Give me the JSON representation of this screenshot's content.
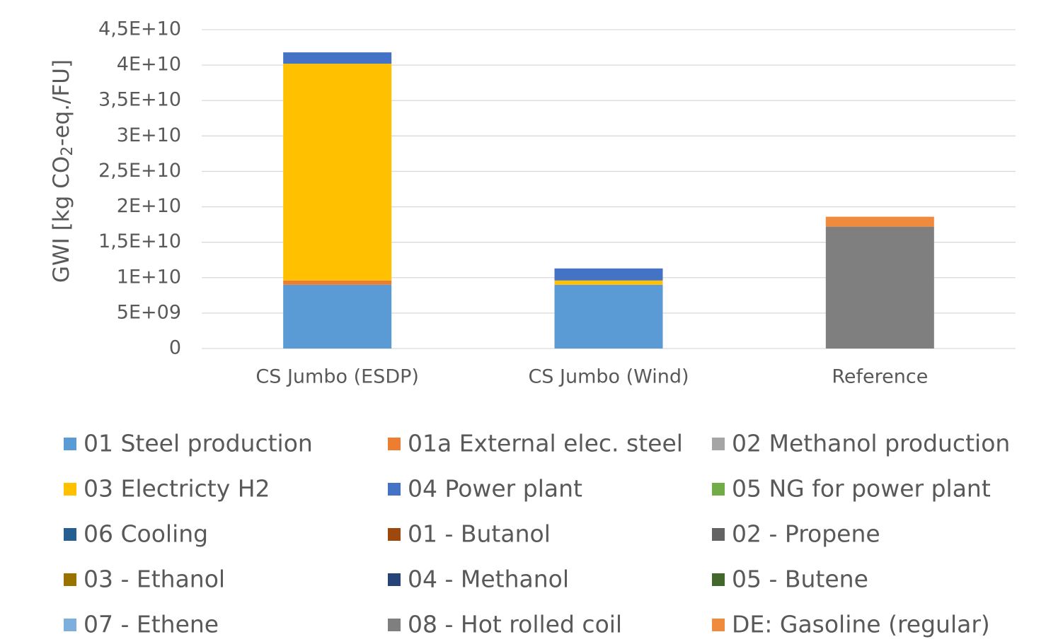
{
  "chart_data": {
    "type": "bar",
    "stacked": true,
    "y_label": [
      "GWI [kg CO",
      "2",
      "-eq./FU]"
    ],
    "categories": [
      "CS Jumbo (ESDP)",
      "CS Jumbo (Wind)",
      "Reference"
    ],
    "ylim": [
      0,
      45000000000
    ],
    "yticks": [
      0,
      {
        "value": 5000000000,
        "label": "5E+09"
      },
      {
        "value": 10000000000,
        "label": "1E+10"
      },
      {
        "value": 15000000000,
        "label": "1,5E+10"
      },
      {
        "value": 20000000000,
        "label": "2E+10"
      },
      {
        "value": 25000000000,
        "label": "2,5E+10"
      },
      {
        "value": 30000000000,
        "label": "3E+10"
      },
      {
        "value": 35000000000,
        "label": "3,5E+10"
      },
      {
        "value": 40000000000,
        "label": "4E+10"
      },
      {
        "value": 45000000000,
        "label": "4,5E+10"
      }
    ],
    "grid": true,
    "legend": "bottom",
    "series": [
      {
        "name": "01 Steel production",
        "color": "#5b9bd5",
        "values": [
          9000000000,
          9000000000,
          0
        ]
      },
      {
        "name": "01a External elec. steel",
        "color": "#ed7d31",
        "values": [
          600000000,
          0,
          0
        ]
      },
      {
        "name": "02 Methanol production",
        "color": "#a5a5a5",
        "values": [
          0,
          0,
          0
        ]
      },
      {
        "name": "03 Electricty H2",
        "color": "#ffc000",
        "values": [
          30600000000,
          600000000,
          0
        ]
      },
      {
        "name": "04 Power plant",
        "color": "#4472c4",
        "values": [
          1600000000,
          1700000000,
          0
        ]
      },
      {
        "name": "05 NG for power plant",
        "color": "#70ad47",
        "values": [
          0,
          0,
          0
        ]
      },
      {
        "name": "06 Cooling",
        "color": "#255e91",
        "values": [
          0,
          0,
          0
        ]
      },
      {
        "name": "01 - Butanol",
        "color": "#9e480e",
        "values": [
          0,
          0,
          0
        ]
      },
      {
        "name": "02 - Propene",
        "color": "#636363",
        "values": [
          0,
          0,
          0
        ]
      },
      {
        "name": "03 - Ethanol",
        "color": "#997300",
        "values": [
          0,
          0,
          0
        ]
      },
      {
        "name": "04 - Methanol",
        "color": "#264478",
        "values": [
          0,
          0,
          0
        ]
      },
      {
        "name": "05 - Butene",
        "color": "#43682b",
        "values": [
          0,
          0,
          0
        ]
      },
      {
        "name": "07 - Ethene",
        "color": "#7cafdd",
        "values": [
          0,
          0,
          0
        ]
      },
      {
        "name": "08 - Hot rolled coil",
        "color": "#7f7f7f",
        "values": [
          0,
          0,
          17200000000
        ]
      },
      {
        "name": "DE: Gasoline (regular)",
        "color": "#f08a3c",
        "values": [
          0,
          0,
          1400000000
        ]
      }
    ]
  }
}
